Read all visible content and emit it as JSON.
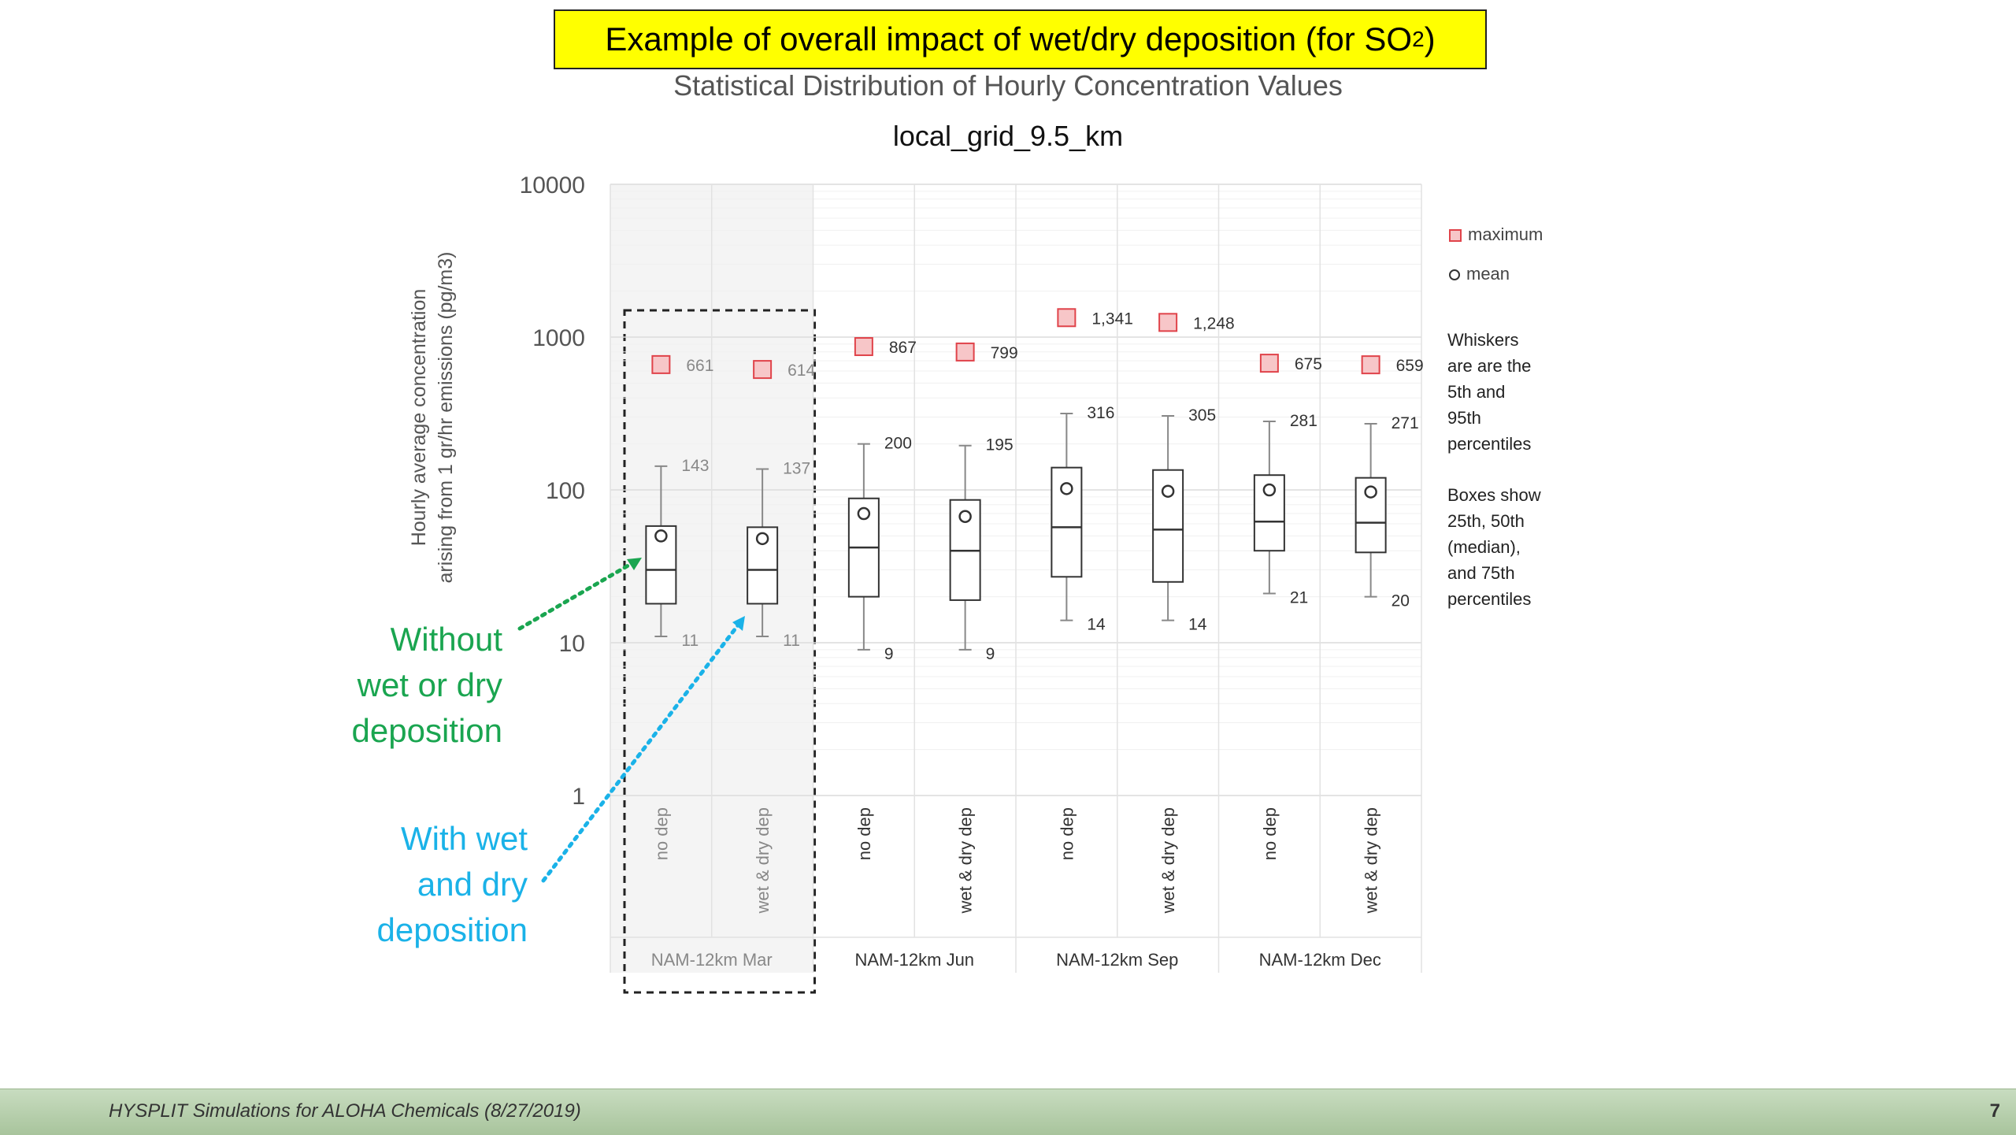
{
  "slide": {
    "title_main": "Example of overall impact of wet/dry deposition (for SO",
    "title_sub": "2",
    "title_close": ")",
    "footer": "HYSPLIT Simulations for ALOHA Chemicals (8/27/2019)",
    "page_number": "7"
  },
  "annotations": {
    "no_dep_line1": "Without",
    "no_dep_line2": "wet or dry",
    "no_dep_line3": "deposition",
    "dep_line1": "With wet",
    "dep_line2": "and dry",
    "dep_line3": "deposition",
    "no_dep_color": "#1aa550",
    "dep_color": "#1ab2e8"
  },
  "legend": {
    "maximum": "maximum",
    "mean": "mean"
  },
  "notes": {
    "whiskers": [
      "Whiskers",
      "are are the",
      "5th and",
      "95th",
      "percentiles"
    ],
    "boxes": [
      "Boxes show",
      "25th, 50th",
      "(median),",
      "and 75th",
      "percentiles"
    ]
  },
  "chart_data": {
    "type": "box",
    "title": "Statistical Distribution of Hourly Concentration Values",
    "subtitle": "local_grid_9.5_km",
    "ylabel_line1": "Hourly average concentration",
    "ylabel_line2": "arising from 1 gr/hr emissions (pg/m3)",
    "yscale": "log",
    "ylim": [
      1,
      10000
    ],
    "yticks": [
      "1",
      "10",
      "100",
      "1000",
      "10000"
    ],
    "groups": [
      "NAM-12km Mar",
      "NAM-12km Jun",
      "NAM-12km Sep",
      "NAM-12km Dec"
    ],
    "highlighted_group": "NAM-12km Mar",
    "categories": [
      {
        "group": "NAM-12km Mar",
        "label": "no dep",
        "p5": 11,
        "p25": 18,
        "median": 30,
        "p75": 58,
        "p95": 143,
        "mean": 50,
        "max": 661,
        "p5_label": "11",
        "p95_label": "143",
        "max_label": "661"
      },
      {
        "group": "NAM-12km Mar",
        "label": "wet & dry dep",
        "p5": 11,
        "p25": 18,
        "median": 30,
        "p75": 57,
        "p95": 137,
        "mean": 48,
        "max": 614,
        "p5_label": "11",
        "p95_label": "137",
        "max_label": "614"
      },
      {
        "group": "NAM-12km Jun",
        "label": "no dep",
        "p5": 9,
        "p25": 20,
        "median": 42,
        "p75": 88,
        "p95": 200,
        "mean": 70,
        "max": 867,
        "p5_label": "9",
        "p95_label": "200",
        "max_label": "867"
      },
      {
        "group": "NAM-12km Jun",
        "label": "wet & dry dep",
        "p5": 9,
        "p25": 19,
        "median": 40,
        "p75": 86,
        "p95": 195,
        "mean": 67,
        "max": 799,
        "p5_label": "9",
        "p95_label": "195",
        "max_label": "799"
      },
      {
        "group": "NAM-12km Sep",
        "label": "no dep",
        "p5": 14,
        "p25": 27,
        "median": 57,
        "p75": 140,
        "p95": 316,
        "mean": 102,
        "max": 1341,
        "p5_label": "14",
        "p95_label": "316",
        "max_label": "1,341"
      },
      {
        "group": "NAM-12km Sep",
        "label": "wet & dry dep",
        "p5": 14,
        "p25": 25,
        "median": 55,
        "p75": 135,
        "p95": 305,
        "mean": 98,
        "max": 1248,
        "p5_label": "14",
        "p95_label": "305",
        "max_label": "1,248"
      },
      {
        "group": "NAM-12km Dec",
        "label": "no dep",
        "p5": 21,
        "p25": 40,
        "median": 62,
        "p75": 125,
        "p95": 281,
        "mean": 100,
        "max": 675,
        "p5_label": "21",
        "p95_label": "281",
        "max_label": "675"
      },
      {
        "group": "NAM-12km Dec",
        "label": "wet & dry dep",
        "p5": 20,
        "p25": 39,
        "median": 61,
        "p75": 120,
        "p95": 271,
        "mean": 97,
        "max": 659,
        "p5_label": "20",
        "p95_label": "271",
        "max_label": "659"
      }
    ],
    "colors": {
      "max_marker_fill": "#f7c6c8",
      "max_marker_stroke": "#e0434a",
      "box_stroke": "#333333",
      "highlight_fill": "#f4f4f4",
      "grid": "#e6e6e6",
      "label_text": "#333333",
      "highlight_text": "#888888"
    },
    "legend_position": "right",
    "grid": true
  }
}
